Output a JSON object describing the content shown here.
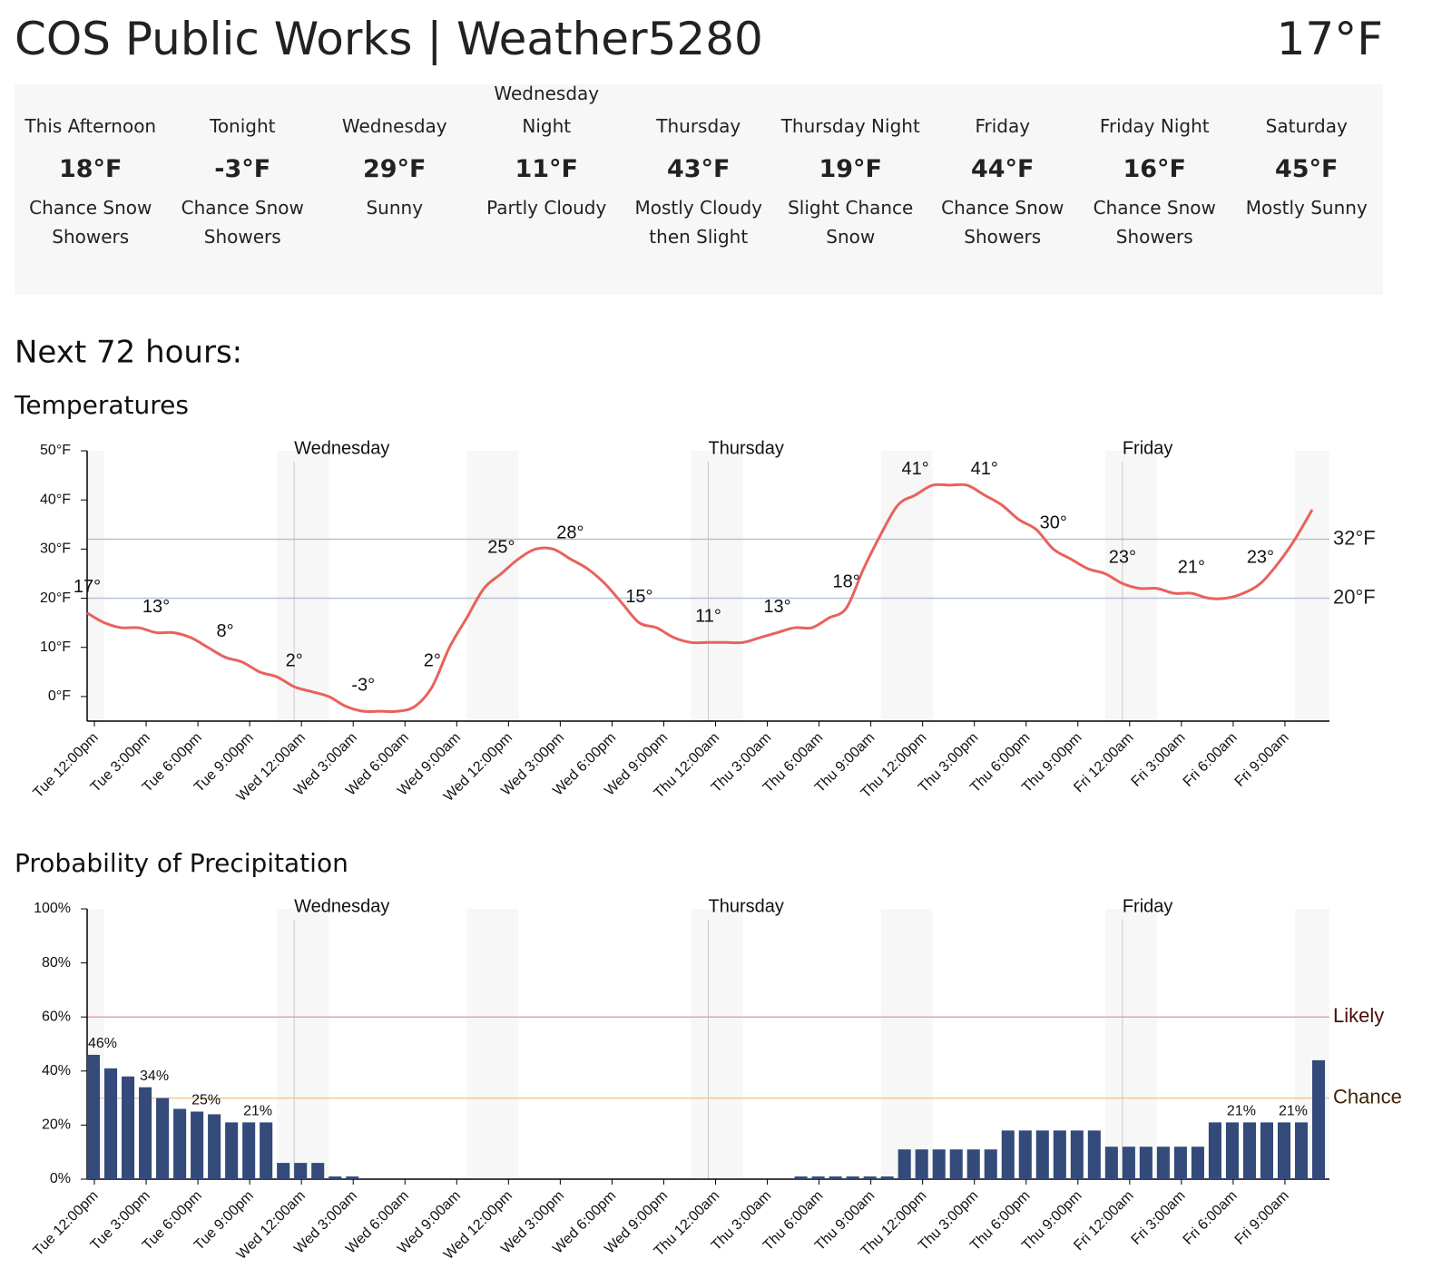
{
  "header": {
    "title": "COS Public Works | Weather5280",
    "current_temperature": "17°F"
  },
  "forecast": [
    {
      "name": "This Afternoon",
      "temperature": "18°F",
      "short_forecast": "Chance Snow Showers"
    },
    {
      "name": "Tonight",
      "temperature": "-3°F",
      "short_forecast": "Chance Snow Showers"
    },
    {
      "name": "Wednesday",
      "temperature": "29°F",
      "short_forecast": "Sunny"
    },
    {
      "name": "Wednesday Night",
      "temperature": "11°F",
      "short_forecast": "Partly Cloudy"
    },
    {
      "name": "Thursday",
      "temperature": "43°F",
      "short_forecast": "Mostly Cloudy then Slight"
    },
    {
      "name": "Thursday Night",
      "temperature": "19°F",
      "short_forecast": "Slight Chance Snow"
    },
    {
      "name": "Friday",
      "temperature": "44°F",
      "short_forecast": "Chance Snow Showers"
    },
    {
      "name": "Friday Night",
      "temperature": "16°F",
      "short_forecast": "Chance Snow Showers"
    },
    {
      "name": "Saturday",
      "temperature": "45°F",
      "short_forecast": "Mostly Sunny"
    }
  ],
  "section_title": "Next 72 hours:",
  "chart_data": [
    {
      "type": "line",
      "title": "Temperatures",
      "categories": [
        "Tue 12:00pm",
        null,
        null,
        "Tue 3:00pm",
        null,
        null,
        "Tue 6:00pm",
        null,
        null,
        "Tue 9:00pm",
        null,
        null,
        "Wed 12:00am",
        null,
        null,
        "Wed 3:00am",
        null,
        null,
        "Wed 6:00am",
        null,
        null,
        "Wed 9:00am",
        null,
        null,
        "Wed 12:00pm",
        null,
        null,
        "Wed 3:00pm",
        null,
        null,
        "Wed 6:00pm",
        null,
        null,
        "Wed 9:00pm",
        null,
        null,
        "Thu 12:00am",
        null,
        null,
        "Thu 3:00am",
        null,
        null,
        "Thu 6:00am",
        null,
        null,
        "Thu 9:00am",
        null,
        null,
        "Thu 12:00pm",
        null,
        null,
        "Thu 3:00pm",
        null,
        null,
        "Thu 6:00pm",
        null,
        null,
        "Thu 9:00pm",
        null,
        null,
        "Fri 12:00am",
        null,
        null,
        "Fri 3:00am",
        null,
        null,
        "Fri 6:00am",
        null,
        null,
        "Fri 9:00am",
        null,
        null
      ],
      "values": [
        17,
        15,
        14,
        14,
        13,
        13,
        12,
        10,
        8,
        7,
        5,
        4,
        2,
        1,
        0,
        -2,
        -3,
        -3,
        -3,
        -2,
        2,
        10,
        16,
        22,
        25,
        28,
        30,
        30,
        28,
        26,
        23,
        19,
        15,
        14,
        12,
        11,
        11,
        11,
        11,
        12,
        13,
        14,
        14,
        16,
        18,
        26,
        33,
        39,
        41,
        43,
        43,
        43,
        41,
        39,
        36,
        34,
        30,
        28,
        26,
        25,
        23,
        22,
        22,
        21,
        21,
        20,
        20,
        21,
        23,
        27,
        32,
        38
      ],
      "value_labels": [
        "17°",
        null,
        null,
        null,
        "13°",
        null,
        null,
        null,
        "8°",
        null,
        null,
        null,
        "2°",
        null,
        null,
        null,
        "-3°",
        null,
        null,
        null,
        "2°",
        null,
        null,
        null,
        "25°",
        null,
        null,
        null,
        "28°",
        null,
        null,
        null,
        "15°",
        null,
        null,
        null,
        "11°",
        null,
        null,
        null,
        "13°",
        null,
        null,
        null,
        "18°",
        null,
        null,
        null,
        "41°",
        null,
        null,
        null,
        "41°",
        null,
        null,
        null,
        "30°",
        null,
        null,
        null,
        "23°",
        null,
        null,
        null,
        "21°",
        null,
        null,
        null,
        "23°",
        null,
        null,
        null
      ],
      "color": "#e8625c",
      "ylim": [
        -5,
        50
      ],
      "yticks": [
        {
          "value": 0,
          "label": "0°F"
        },
        {
          "value": 10,
          "label": "10°F"
        },
        {
          "value": 20,
          "label": "20°F"
        },
        {
          "value": 30,
          "label": "30°F"
        },
        {
          "value": 40,
          "label": "40°F"
        },
        {
          "value": 50,
          "label": "50°F"
        }
      ],
      "reference_lines": [
        {
          "value": 32,
          "label": "32°F",
          "color": "#b4c3d8",
          "label_color": "#222222"
        },
        {
          "value": 20,
          "label": "20°F",
          "color": "#b4c3d8",
          "label_color": "#222222"
        }
      ],
      "day_markers": [
        {
          "label": "Wednesday",
          "category": "Wed 12:00am"
        },
        {
          "label": "Thursday",
          "category": "Thu 12:00am"
        },
        {
          "label": "Friday",
          "category": "Fri 12:00am"
        }
      ]
    },
    {
      "type": "bar",
      "title": "Probability of Precipitation",
      "categories": [
        "Tue 12:00pm",
        null,
        null,
        "Tue 3:00pm",
        null,
        null,
        "Tue 6:00pm",
        null,
        null,
        "Tue 9:00pm",
        null,
        null,
        "Wed 12:00am",
        null,
        null,
        "Wed 3:00am",
        null,
        null,
        "Wed 6:00am",
        null,
        null,
        "Wed 9:00am",
        null,
        null,
        "Wed 12:00pm",
        null,
        null,
        "Wed 3:00pm",
        null,
        null,
        "Wed 6:00pm",
        null,
        null,
        "Wed 9:00pm",
        null,
        null,
        "Thu 12:00am",
        null,
        null,
        "Thu 3:00am",
        null,
        null,
        "Thu 6:00am",
        null,
        null,
        "Thu 9:00am",
        null,
        null,
        "Thu 12:00pm",
        null,
        null,
        "Thu 3:00pm",
        null,
        null,
        "Thu 6:00pm",
        null,
        null,
        "Thu 9:00pm",
        null,
        null,
        "Fri 12:00am",
        null,
        null,
        "Fri 3:00am",
        null,
        null,
        "Fri 6:00am",
        null,
        null,
        "Fri 9:00am",
        null,
        null
      ],
      "values": [
        46,
        41,
        38,
        34,
        30,
        26,
        25,
        24,
        21,
        21,
        21,
        6,
        6,
        6,
        1,
        1,
        0,
        0,
        0,
        0,
        0,
        0,
        0,
        0,
        0,
        0,
        0,
        0,
        0,
        0,
        0,
        0,
        0,
        0,
        0,
        0,
        0,
        0,
        0,
        0,
        0,
        1,
        1,
        1,
        1,
        1,
        1,
        11,
        11,
        11,
        11,
        11,
        11,
        18,
        18,
        18,
        18,
        18,
        18,
        12,
        12,
        12,
        12,
        12,
        12,
        21,
        21,
        21,
        21,
        21,
        21,
        44
      ],
      "value_labels": [
        "46%",
        null,
        null,
        "34%",
        null,
        null,
        "25%",
        null,
        null,
        "21%",
        null,
        null,
        null,
        null,
        null,
        null,
        null,
        null,
        null,
        null,
        null,
        null,
        null,
        null,
        null,
        null,
        null,
        null,
        null,
        null,
        null,
        null,
        null,
        null,
        null,
        null,
        null,
        null,
        null,
        null,
        null,
        null,
        null,
        null,
        null,
        null,
        null,
        null,
        null,
        null,
        null,
        null,
        null,
        null,
        null,
        null,
        null,
        null,
        null,
        null,
        null,
        null,
        null,
        null,
        null,
        null,
        "21%",
        null,
        null,
        "21%",
        null,
        null
      ],
      "color": "#344a7b",
      "ylim": [
        0,
        100
      ],
      "yticks": [
        {
          "value": 0,
          "label": "0%"
        },
        {
          "value": 20,
          "label": "20%"
        },
        {
          "value": 40,
          "label": "40%"
        },
        {
          "value": 60,
          "label": "60%"
        },
        {
          "value": 80,
          "label": "80%"
        },
        {
          "value": 100,
          "label": "100%"
        }
      ],
      "reference_lines": [
        {
          "value": 60,
          "label": "Likely",
          "color": "#eaa3a3",
          "label_color": "#4a0c0c"
        },
        {
          "value": 30,
          "label": "Chance",
          "color": "#f4c98e",
          "label_color": "#3d2405"
        }
      ],
      "day_markers": [
        {
          "label": "Wednesday",
          "category": "Wed 12:00am"
        },
        {
          "label": "Thursday",
          "category": "Thu 12:00am"
        },
        {
          "label": "Friday",
          "category": "Fri 12:00am"
        }
      ]
    }
  ]
}
